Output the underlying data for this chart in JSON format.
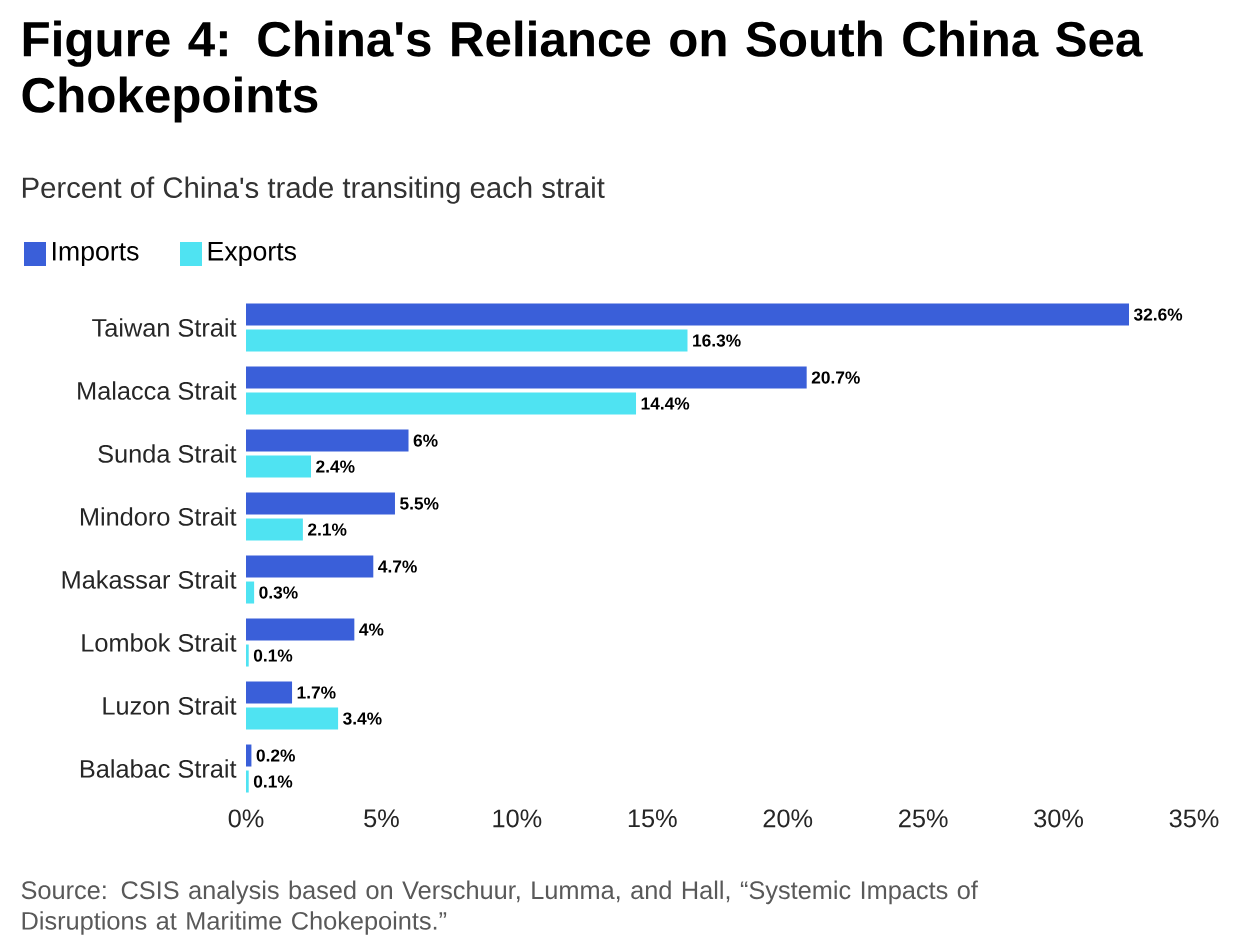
{
  "chart_data": {
    "type": "bar",
    "orientation": "horizontal",
    "title": "Figure 4: China's Reliance on South China Sea Chokepoints",
    "subtitle": "Percent of China's trade transiting each strait",
    "categories": [
      "Taiwan Strait",
      "Malacca Strait",
      "Sunda Strait",
      "Mindoro Strait",
      "Makassar Strait",
      "Lombok Strait",
      "Luzon Strait",
      "Balabac Strait"
    ],
    "series": [
      {
        "name": "Imports",
        "color": "#3a5fd9",
        "values": [
          32.6,
          20.7,
          6,
          5.5,
          4.7,
          4,
          1.7,
          0.2
        ],
        "value_labels": [
          "32.6%",
          "20.7%",
          "6%",
          "5.5%",
          "4.7%",
          "4%",
          "1.7%",
          "0.2%"
        ]
      },
      {
        "name": "Exports",
        "color": "#4fe3f2",
        "values": [
          16.3,
          14.4,
          2.4,
          2.1,
          0.3,
          0.1,
          3.4,
          0.1
        ],
        "value_labels": [
          "16.3%",
          "14.4%",
          "2.4%",
          "2.1%",
          "0.3%",
          "0.1%",
          "3.4%",
          "0.1%"
        ]
      }
    ],
    "xlim": [
      0,
      35
    ],
    "xticks": [
      {
        "value": 0,
        "label": "0%"
      },
      {
        "value": 5,
        "label": "5%"
      },
      {
        "value": 10,
        "label": "10%"
      },
      {
        "value": 15,
        "label": "15%"
      },
      {
        "value": 20,
        "label": "20%"
      },
      {
        "value": 25,
        "label": "25%"
      },
      {
        "value": 30,
        "label": "30%"
      },
      {
        "value": 35,
        "label": "35%"
      }
    ],
    "grid": false,
    "legend": "top left",
    "annotations": [
      "Source: CSIS analysis based on Verschuur, Lumma, and Hall, “Systemic Impacts of Disruptions at Maritime Chokepoints.”"
    ]
  }
}
